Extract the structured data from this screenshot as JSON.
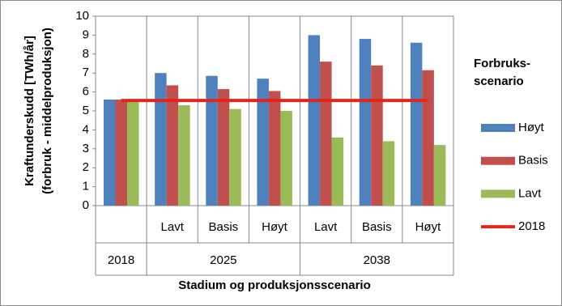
{
  "chart_data": {
    "type": "bar",
    "y_label": [
      "Kraftunderskudd [TWh/år]",
      "(forbruk - middelproduksjon)"
    ],
    "x_label": "Stadium og  produksjonsscenario",
    "legend_title": [
      "Forbruks-",
      "scenario"
    ],
    "categories": [
      null,
      "Lavt",
      "Basis",
      "Høyt",
      "Lavt",
      "Basis",
      "Høyt"
    ],
    "category_groups": [
      "2018",
      "2025",
      "2025",
      "2025",
      "2038",
      "2038",
      "2038"
    ],
    "series": [
      {
        "name": "Høyt",
        "color": "#4f81bd",
        "values": [
          5.6,
          7.0,
          6.85,
          6.7,
          9.0,
          8.8,
          8.6
        ]
      },
      {
        "name": "Basis",
        "color": "#c0504d",
        "values": [
          5.6,
          6.35,
          6.15,
          6.05,
          7.6,
          7.4,
          7.15
        ]
      },
      {
        "name": "Lavt",
        "color": "#9bbb59",
        "values": [
          5.6,
          5.3,
          5.1,
          5.0,
          3.6,
          3.4,
          3.2
        ]
      },
      {
        "name": "2018",
        "type": "line",
        "color": "#e3261b",
        "values": [
          5.55,
          5.55,
          5.55,
          5.55,
          5.55,
          5.55,
          5.55
        ]
      }
    ],
    "ylim": [
      0,
      10
    ],
    "yticks": [
      0,
      1,
      2,
      3,
      4,
      5,
      6,
      7,
      8,
      9,
      10
    ],
    "legend": "right"
  }
}
